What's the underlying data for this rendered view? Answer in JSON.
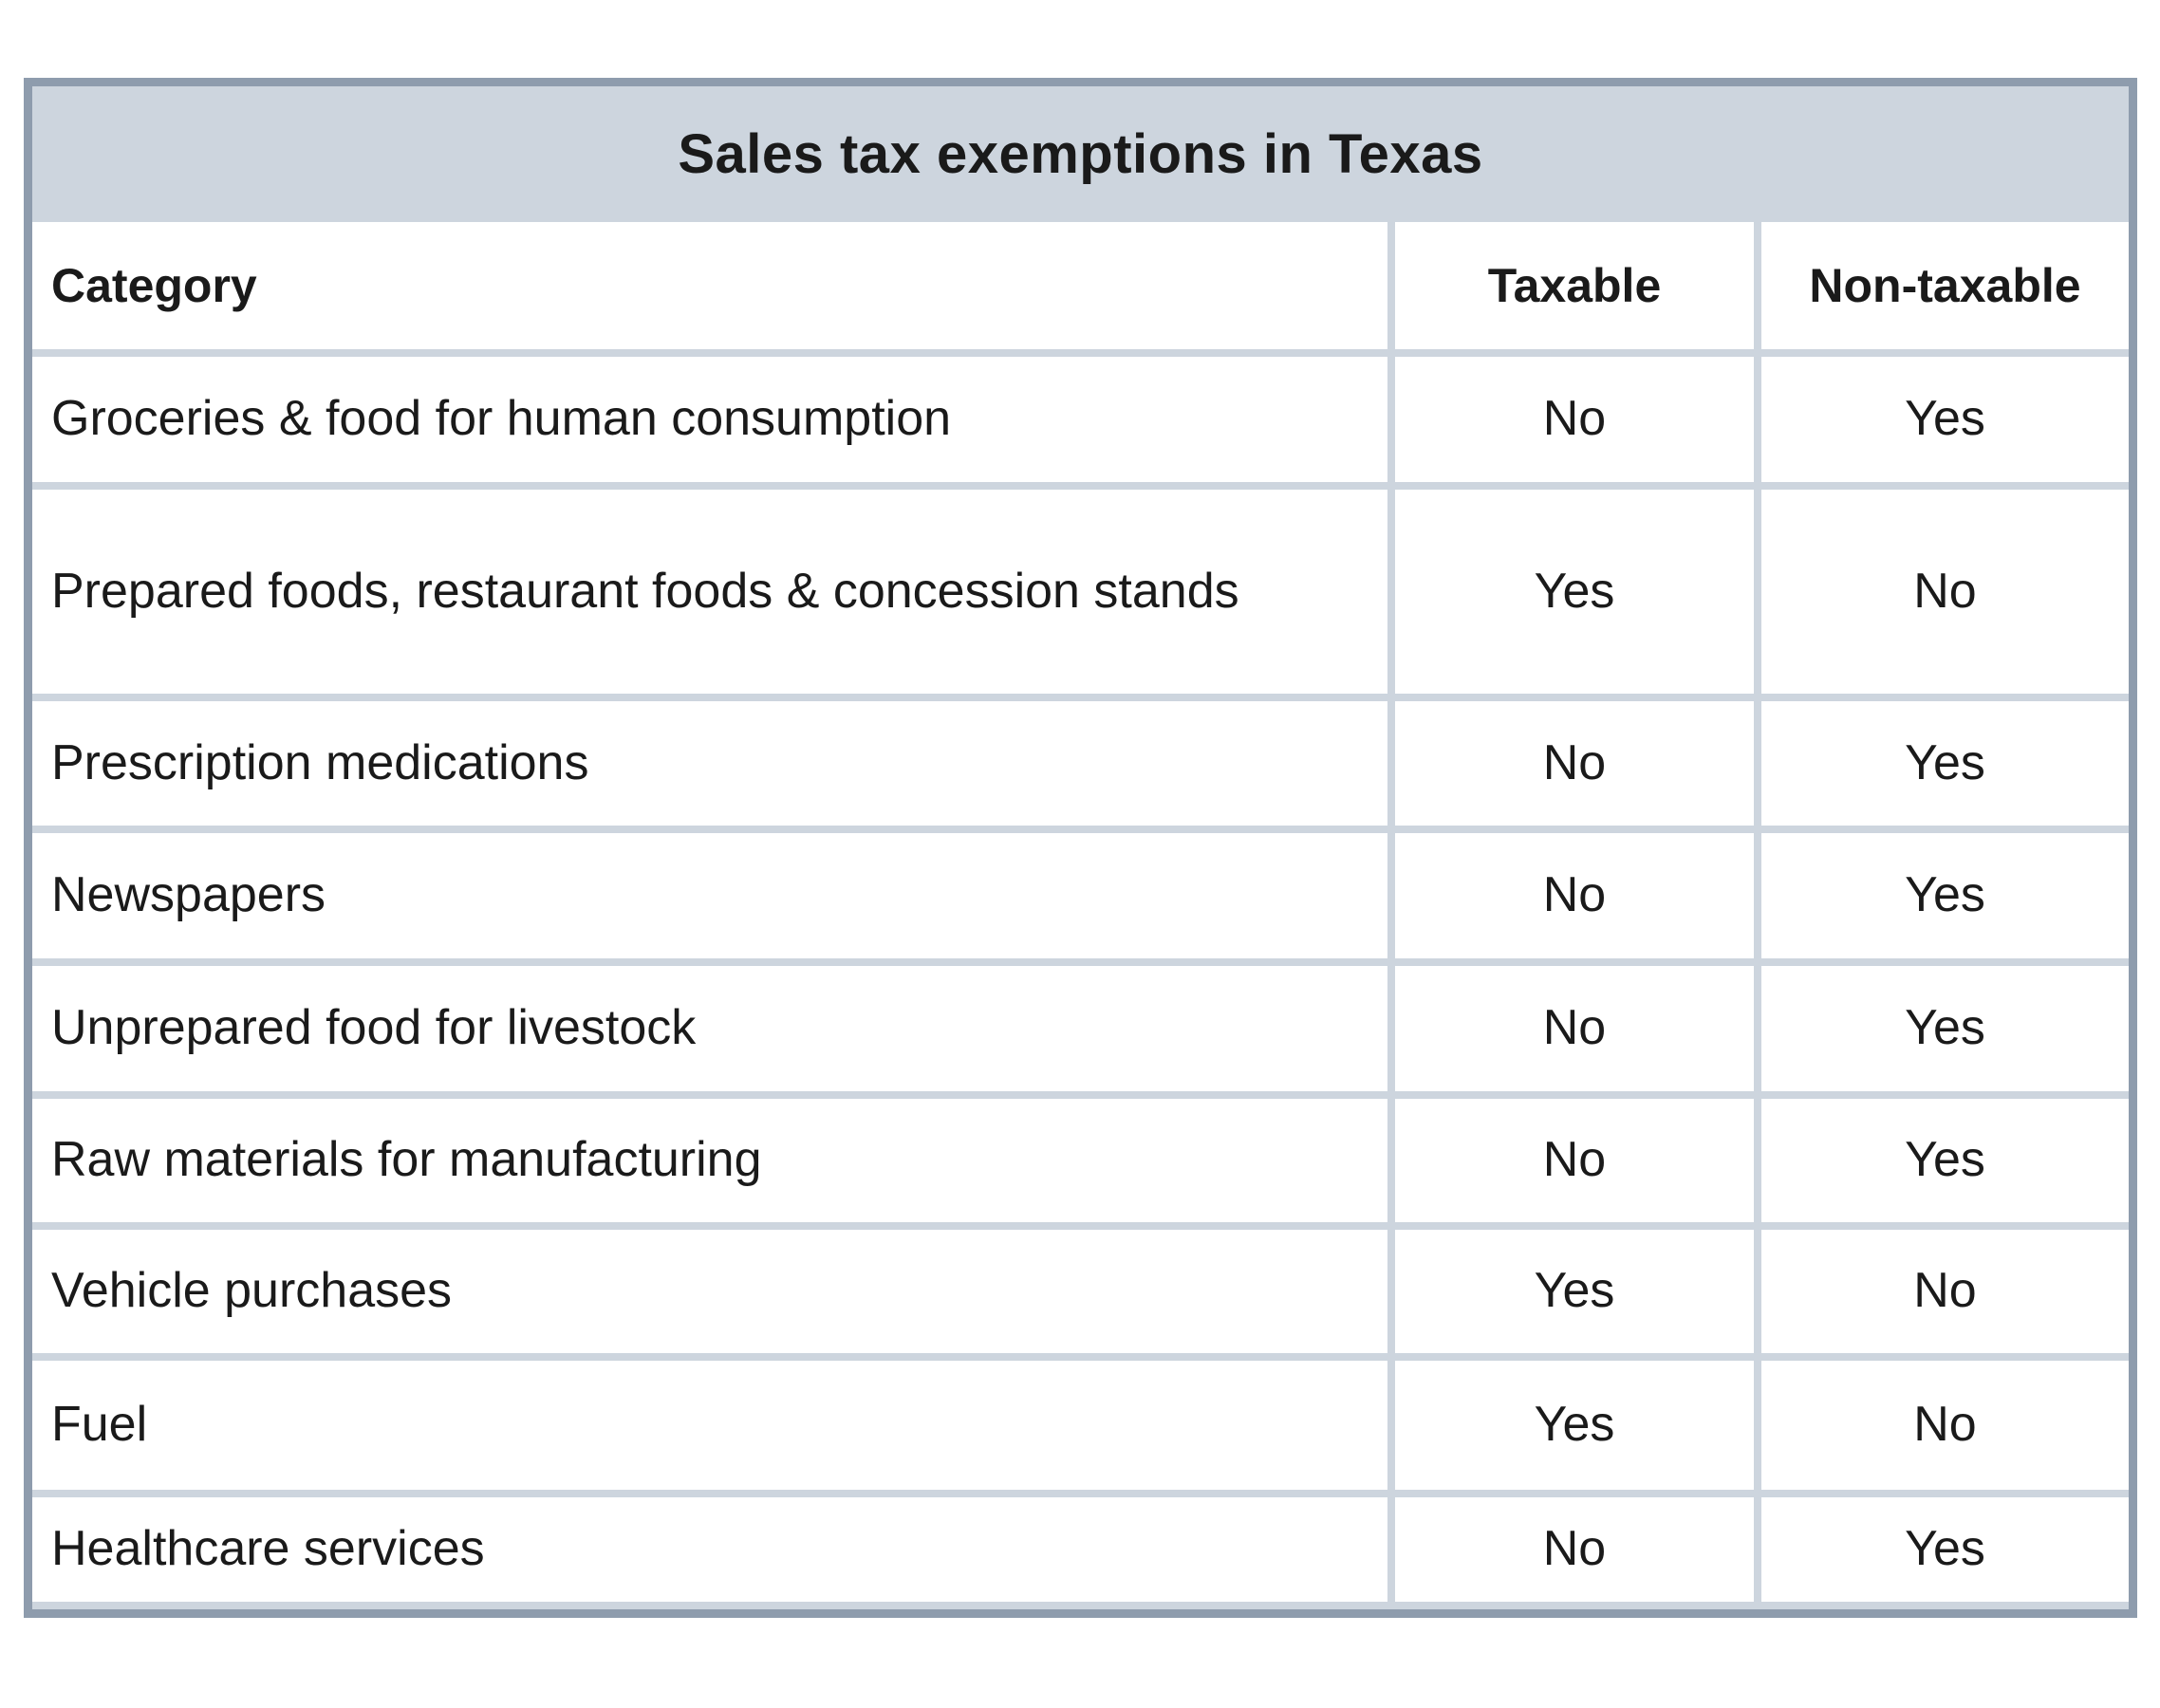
{
  "table": {
    "title": "Sales tax exemptions in Texas",
    "columns": [
      "Category",
      "Taxable",
      "Non-taxable"
    ],
    "rows": [
      {
        "category": "Groceries & food for human consumption",
        "taxable": "No",
        "non_taxable": "Yes"
      },
      {
        "category": "Prepared foods, restaurant foods & concession stands",
        "taxable": "Yes",
        "non_taxable": "No"
      },
      {
        "category": "Prescription medications",
        "taxable": "No",
        "non_taxable": "Yes"
      },
      {
        "category": "Newspapers",
        "taxable": "No",
        "non_taxable": "Yes"
      },
      {
        "category": "Unprepared food for livestock",
        "taxable": "No",
        "non_taxable": "Yes"
      },
      {
        "category": "Raw materials for manufacturing",
        "taxable": "No",
        "non_taxable": "Yes"
      },
      {
        "category": "Vehicle purchases",
        "taxable": "Yes",
        "non_taxable": "No"
      },
      {
        "category": "Fuel",
        "taxable": "Yes",
        "non_taxable": "No"
      },
      {
        "category": "Healthcare services",
        "taxable": "No",
        "non_taxable": "Yes"
      }
    ]
  },
  "colors": {
    "frame_border": "#8e9cad",
    "divider": "#cdd5de",
    "title_bg": "#cdd5de",
    "cell_bg": "#ffffff",
    "text": "#1a1a1a"
  },
  "chart_data": {
    "type": "table",
    "title": "Sales tax exemptions in Texas",
    "columns": [
      "Category",
      "Taxable",
      "Non-taxable"
    ],
    "rows": [
      [
        "Groceries & food for human consumption",
        "No",
        "Yes"
      ],
      [
        "Prepared foods, restaurant foods & concession stands",
        "Yes",
        "No"
      ],
      [
        "Prescription medications",
        "No",
        "Yes"
      ],
      [
        "Newspapers",
        "No",
        "Yes"
      ],
      [
        "Unprepared food for livestock",
        "No",
        "Yes"
      ],
      [
        "Raw materials for manufacturing",
        "No",
        "Yes"
      ],
      [
        "Vehicle purchases",
        "Yes",
        "No"
      ],
      [
        "Fuel",
        "Yes",
        "No"
      ],
      [
        "Healthcare services",
        "No",
        "Yes"
      ]
    ]
  }
}
